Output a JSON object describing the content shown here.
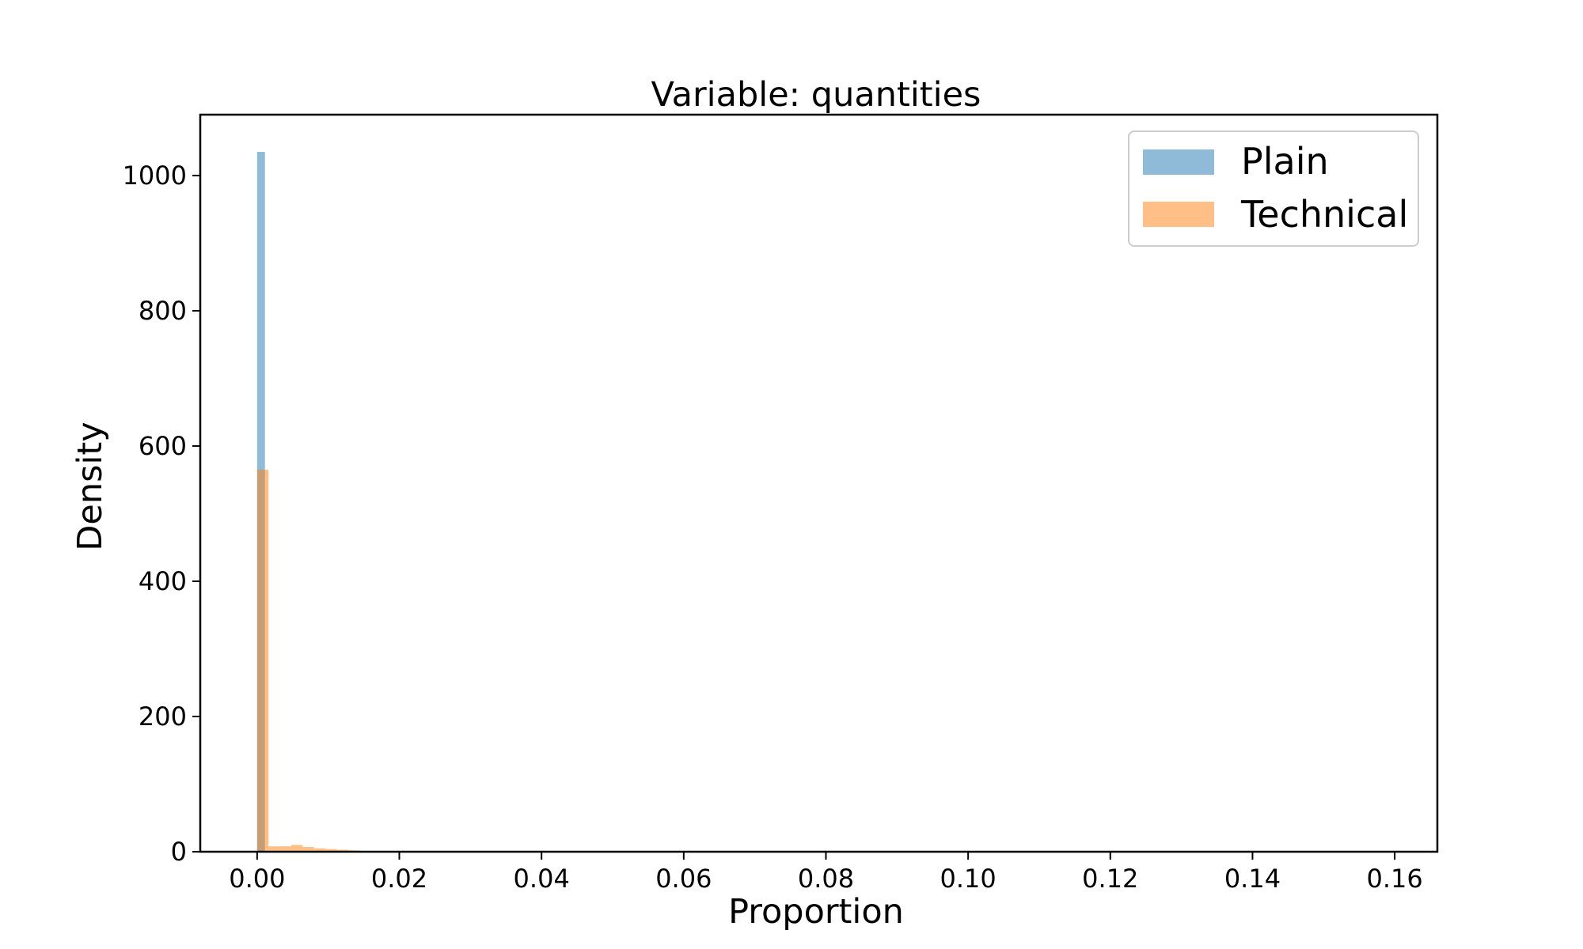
{
  "chart_data": {
    "type": "bar",
    "title": "Variable: quantities",
    "xlabel": "Proportion",
    "ylabel": "Density",
    "xlim": [
      -0.008,
      0.166
    ],
    "ylim": [
      0,
      1090
    ],
    "x_ticks": [
      0.0,
      0.02,
      0.04,
      0.06,
      0.08,
      0.1,
      0.12,
      0.14,
      0.16
    ],
    "x_tick_labels": [
      "0.00",
      "0.02",
      "0.04",
      "0.06",
      "0.08",
      "0.10",
      "0.12",
      "0.14",
      "0.16"
    ],
    "y_ticks": [
      0,
      200,
      400,
      600,
      800,
      1000
    ],
    "y_tick_labels": [
      "0",
      "200",
      "400",
      "600",
      "800",
      "1000"
    ],
    "grid": false,
    "legend_position": "top-right",
    "series": [
      {
        "name": "Plain",
        "color": "#1f77b4",
        "opacity": 0.5,
        "bin_width": 0.0011,
        "bins": [
          {
            "x0": 0.0,
            "value": 1035
          }
        ]
      },
      {
        "name": "Technical",
        "color": "#ff7f0e",
        "opacity": 0.5,
        "bin_width": 0.0016,
        "bins": [
          {
            "x0": 0.0,
            "value": 565
          },
          {
            "x0": 0.0016,
            "value": 8
          },
          {
            "x0": 0.0032,
            "value": 8
          },
          {
            "x0": 0.0048,
            "value": 10
          },
          {
            "x0": 0.0064,
            "value": 7
          },
          {
            "x0": 0.008,
            "value": 5
          },
          {
            "x0": 0.0096,
            "value": 4
          },
          {
            "x0": 0.0112,
            "value": 3
          },
          {
            "x0": 0.0128,
            "value": 2
          },
          {
            "x0": 0.0144,
            "value": 1
          },
          {
            "x0": 0.016,
            "value": 1
          }
        ]
      }
    ]
  }
}
